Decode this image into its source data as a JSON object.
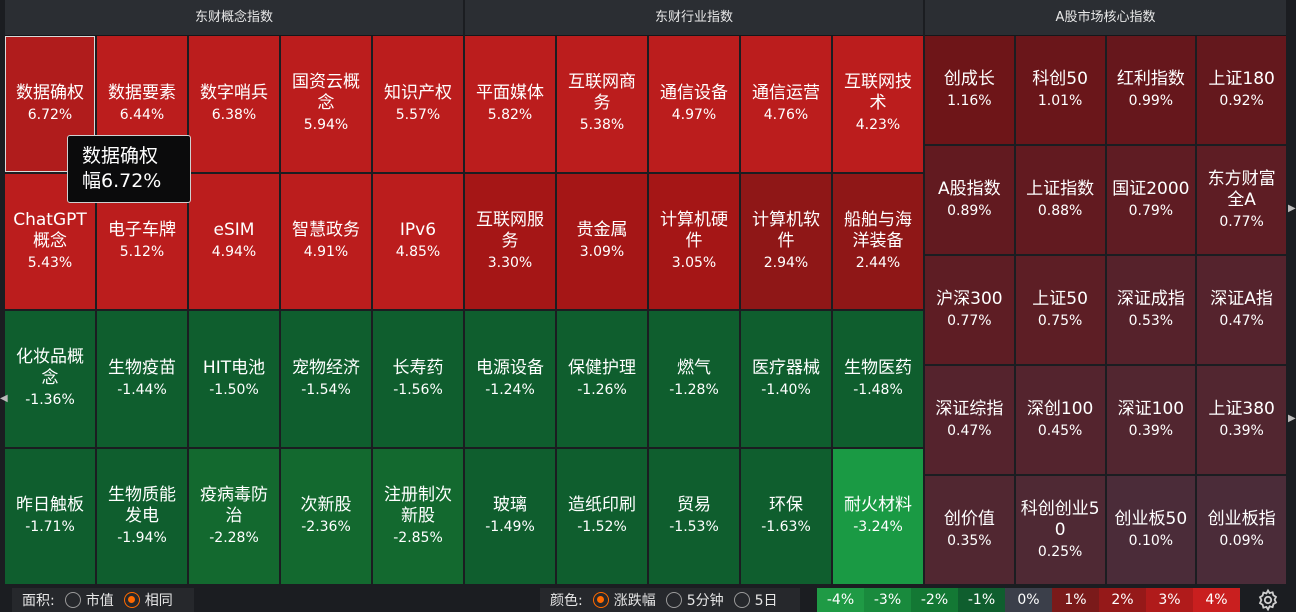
{
  "sections": {
    "concept": "东财概念指数",
    "industry": "东财行业指数",
    "core": "A股市场核心指数"
  },
  "concept_tiles": [
    {
      "name": "数据确权",
      "pct": "6.72%",
      "color": "#b01c1c"
    },
    {
      "name": "数据要素",
      "pct": "6.44%",
      "color": "#bb1d1d"
    },
    {
      "name": "数字哨兵",
      "pct": "6.38%",
      "color": "#bb1d1d"
    },
    {
      "name": "国资云概念",
      "pct": "5.94%",
      "color": "#bb1d1d"
    },
    {
      "name": "知识产权",
      "pct": "5.57%",
      "color": "#bb1d1d"
    },
    {
      "name": "ChatGPT概念",
      "pct": "5.43%",
      "color": "#bb1d1d"
    },
    {
      "name": "电子车牌",
      "pct": "5.12%",
      "color": "#bb1d1d"
    },
    {
      "name": "eSIM",
      "pct": "4.94%",
      "color": "#bb1d1d"
    },
    {
      "name": "智慧政务",
      "pct": "4.91%",
      "color": "#bb1d1d"
    },
    {
      "name": "IPv6",
      "pct": "4.85%",
      "color": "#bb1d1d"
    },
    {
      "name": "化妆品概念",
      "pct": "-1.36%",
      "color": "#0f5e2e"
    },
    {
      "name": "生物疫苗",
      "pct": "-1.44%",
      "color": "#0f5e2e"
    },
    {
      "name": "HIT电池",
      "pct": "-1.50%",
      "color": "#0f5e2e"
    },
    {
      "name": "宠物经济",
      "pct": "-1.54%",
      "color": "#0f5e2e"
    },
    {
      "name": "长寿药",
      "pct": "-1.56%",
      "color": "#0f5e2e"
    },
    {
      "name": "昨日触板",
      "pct": "-1.71%",
      "color": "#0f5e2e"
    },
    {
      "name": "生物质能发电",
      "pct": "-1.94%",
      "color": "#0f5e2e"
    },
    {
      "name": "疫病毒防治",
      "pct": "-2.28%",
      "color": "#13692f"
    },
    {
      "name": "次新股",
      "pct": "-2.36%",
      "color": "#13692f"
    },
    {
      "name": "注册制次新股",
      "pct": "-2.85%",
      "color": "#13692f"
    }
  ],
  "industry_tiles": [
    {
      "name": "平面媒体",
      "pct": "5.82%",
      "color": "#bb1d1d"
    },
    {
      "name": "互联网商务",
      "pct": "5.38%",
      "color": "#bb1d1d"
    },
    {
      "name": "通信设备",
      "pct": "4.97%",
      "color": "#bb1d1d"
    },
    {
      "name": "通信运营",
      "pct": "4.76%",
      "color": "#bb1d1d"
    },
    {
      "name": "互联网技术",
      "pct": "4.23%",
      "color": "#bb1d1d"
    },
    {
      "name": "互联网服务",
      "pct": "3.30%",
      "color": "#a51616"
    },
    {
      "name": "贵金属",
      "pct": "3.09%",
      "color": "#a51616"
    },
    {
      "name": "计算机硬件",
      "pct": "3.05%",
      "color": "#a51616"
    },
    {
      "name": "计算机软件",
      "pct": "2.94%",
      "color": "#8f1717"
    },
    {
      "name": "船舶与海洋装备",
      "pct": "2.44%",
      "color": "#8f1717"
    },
    {
      "name": "电源设备",
      "pct": "-1.24%",
      "color": "#0f5e2e"
    },
    {
      "name": "保健护理",
      "pct": "-1.26%",
      "color": "#0f5e2e"
    },
    {
      "name": "燃气",
      "pct": "-1.28%",
      "color": "#0f5e2e"
    },
    {
      "name": "医疗器械",
      "pct": "-1.40%",
      "color": "#0f5e2e"
    },
    {
      "name": "生物医药",
      "pct": "-1.48%",
      "color": "#0f5e2e"
    },
    {
      "name": "玻璃",
      "pct": "-1.49%",
      "color": "#0f5e2e"
    },
    {
      "name": "造纸印刷",
      "pct": "-1.52%",
      "color": "#0f5e2e"
    },
    {
      "name": "贸易",
      "pct": "-1.53%",
      "color": "#0f5e2e"
    },
    {
      "name": "环保",
      "pct": "-1.63%",
      "color": "#0f5e2e"
    },
    {
      "name": "耐火材料",
      "pct": "-3.24%",
      "color": "#1a9a44"
    }
  ],
  "core_tiles": [
    {
      "name": "创成长",
      "pct": "1.16%",
      "color": "#6e1518"
    },
    {
      "name": "科创50",
      "pct": "1.01%",
      "color": "#6a161a"
    },
    {
      "name": "红利指数",
      "pct": "0.99%",
      "color": "#66171c"
    },
    {
      "name": "上证180",
      "pct": "0.92%",
      "color": "#64181d"
    },
    {
      "name": "A股指数",
      "pct": "0.89%",
      "color": "#621a20"
    },
    {
      "name": "上证指数",
      "pct": "0.88%",
      "color": "#621a20"
    },
    {
      "name": "国证2000",
      "pct": "0.79%",
      "color": "#5f1c23"
    },
    {
      "name": "东方财富全A",
      "pct": "0.77%",
      "color": "#5e1d24"
    },
    {
      "name": "沪深300",
      "pct": "0.77%",
      "color": "#5e1d24"
    },
    {
      "name": "上证50",
      "pct": "0.75%",
      "color": "#5d1e25"
    },
    {
      "name": "深证成指",
      "pct": "0.53%",
      "color": "#56222b"
    },
    {
      "name": "深证A指",
      "pct": "0.47%",
      "color": "#55232d"
    },
    {
      "name": "深证综指",
      "pct": "0.47%",
      "color": "#55232d"
    },
    {
      "name": "深创100",
      "pct": "0.45%",
      "color": "#54242e"
    },
    {
      "name": "深证100",
      "pct": "0.39%",
      "color": "#522630"
    },
    {
      "name": "上证380",
      "pct": "0.39%",
      "color": "#522630"
    },
    {
      "name": "创价值",
      "pct": "0.35%",
      "color": "#512731"
    },
    {
      "name": "科创创业50",
      "pct": "0.25%",
      "color": "#4f2934"
    },
    {
      "name": "创业板50",
      "pct": "0.10%",
      "color": "#4b2c39"
    },
    {
      "name": "创业板指",
      "pct": "0.09%",
      "color": "#4b2c39"
    }
  ],
  "tooltip": {
    "line1": "数据确权",
    "line2": "幅6.72%"
  },
  "footer": {
    "area_label": "面积:",
    "area_options": [
      "市值",
      "相同"
    ],
    "area_selected": 1,
    "color_label": "颜色:",
    "color_options": [
      "涨跌幅",
      "5分钟",
      "5日"
    ],
    "color_selected": 0
  },
  "legend": [
    {
      "label": "-4%",
      "color": "#1f9a45"
    },
    {
      "label": "-3%",
      "color": "#198a3d"
    },
    {
      "label": "-2%",
      "color": "#137834"
    },
    {
      "label": "-1%",
      "color": "#0f5e2e"
    },
    {
      "label": "0%",
      "color": "#3b3f4a"
    },
    {
      "label": "1%",
      "color": "#7a1a1a"
    },
    {
      "label": "2%",
      "color": "#951919"
    },
    {
      "label": "3%",
      "color": "#b01b1b"
    },
    {
      "label": "4%",
      "color": "#c91f1f"
    }
  ]
}
